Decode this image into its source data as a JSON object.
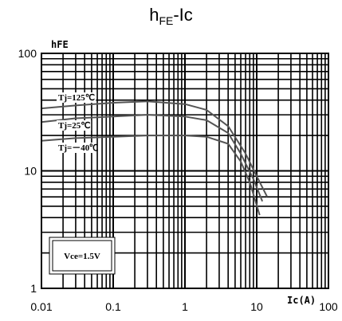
{
  "chart_data": {
    "type": "line",
    "title_main": "h",
    "title_sub": "FE",
    "title_tail": "-Ic",
    "xlabel": "Ic(A)",
    "ylabel": "hFE",
    "xscale": "log",
    "yscale": "log",
    "xlim": [
      0.01,
      100
    ],
    "ylim": [
      1,
      100
    ],
    "grid": true,
    "x_tick_labels": [
      "0.01",
      "0.1",
      "1",
      "10",
      "100"
    ],
    "y_tick_labels": [
      "1",
      "10",
      "100"
    ],
    "series": [
      {
        "name": "Tj=125℃",
        "x": [
          0.01,
          0.03,
          0.1,
          0.3,
          1,
          2,
          4,
          7,
          10,
          14
        ],
        "y": [
          34,
          36,
          38,
          39,
          37,
          33,
          24,
          14,
          9,
          6
        ]
      },
      {
        "name": "Tj=25℃",
        "x": [
          0.01,
          0.03,
          0.1,
          0.3,
          1,
          2,
          4,
          6,
          9,
          12
        ],
        "y": [
          26,
          28,
          29,
          30,
          29,
          27,
          21,
          14,
          8.5,
          5.5
        ]
      },
      {
        "name": "Tj=－40℃",
        "x": [
          0.01,
          0.03,
          0.1,
          0.3,
          1,
          2,
          4,
          6,
          8,
          11
        ],
        "y": [
          18,
          19,
          19.5,
          20,
          20,
          19.5,
          17,
          12,
          8,
          4.2
        ]
      }
    ],
    "annotation": "Vce=1.5V"
  }
}
